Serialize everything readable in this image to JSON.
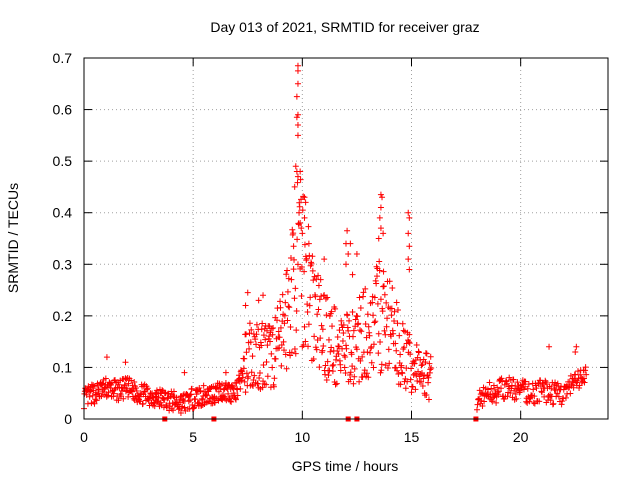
{
  "chart_data": {
    "type": "scatter",
    "title": "Day 013 of 2021, SRMTID for receiver graz",
    "xlabel": "GPS time / hours",
    "ylabel": "SRMTID / TECUs",
    "xlim": [
      0,
      24
    ],
    "ylim": [
      0,
      0.7
    ],
    "x_ticks": [
      0,
      5,
      10,
      15,
      20
    ],
    "y_ticks": [
      0,
      0.1,
      0.2,
      0.3,
      0.4,
      0.5,
      0.6,
      0.7
    ],
    "x_tick_labels": [
      "0",
      "5",
      "10",
      "15",
      "20"
    ],
    "y_tick_labels": [
      "0",
      "0.1",
      "0.2",
      "0.3",
      "0.4",
      "0.5",
      "0.6",
      "0.7"
    ],
    "grid": true,
    "marker": "+",
    "series_color": "#ff0000",
    "envelope": {
      "x": [
        0.0,
        0.5,
        1.0,
        1.5,
        2.0,
        2.5,
        3.0,
        3.5,
        4.0,
        4.5,
        5.0,
        5.5,
        6.0,
        6.5,
        7.0,
        7.3,
        7.6,
        8.0,
        8.5,
        9.0,
        9.5,
        9.8,
        10.0,
        10.3,
        10.6,
        11.0,
        11.5,
        12.0,
        12.5,
        13.0,
        13.5,
        14.0,
        14.5,
        15.0,
        15.5,
        15.9
      ],
      "y": [
        0.04,
        0.05,
        0.06,
        0.055,
        0.06,
        0.05,
        0.045,
        0.04,
        0.035,
        0.03,
        0.04,
        0.045,
        0.05,
        0.055,
        0.05,
        0.1,
        0.13,
        0.13,
        0.12,
        0.15,
        0.24,
        0.3,
        0.3,
        0.26,
        0.2,
        0.17,
        0.14,
        0.13,
        0.15,
        0.17,
        0.2,
        0.18,
        0.13,
        0.1,
        0.09,
        0.08
      ]
    },
    "envelope_2": {
      "x": [
        18.0,
        18.5,
        19.0,
        19.5,
        20.0,
        20.5,
        21.0,
        21.5,
        22.0,
        22.5,
        23.0
      ],
      "y": [
        0.04,
        0.05,
        0.055,
        0.06,
        0.055,
        0.05,
        0.055,
        0.05,
        0.05,
        0.07,
        0.08
      ]
    },
    "spikes": [
      {
        "x": 9.8,
        "y": 0.685
      },
      {
        "x": 9.8,
        "y": 0.675
      },
      {
        "x": 9.8,
        "y": 0.65
      },
      {
        "x": 9.75,
        "y": 0.625
      },
      {
        "x": 9.8,
        "y": 0.59
      },
      {
        "x": 9.75,
        "y": 0.585
      },
      {
        "x": 9.8,
        "y": 0.57
      },
      {
        "x": 9.8,
        "y": 0.55
      },
      {
        "x": 9.7,
        "y": 0.49
      },
      {
        "x": 9.75,
        "y": 0.48
      },
      {
        "x": 9.8,
        "y": 0.47
      },
      {
        "x": 9.65,
        "y": 0.45
      },
      {
        "x": 10.1,
        "y": 0.43
      },
      {
        "x": 10.15,
        "y": 0.42
      },
      {
        "x": 10.1,
        "y": 0.39
      },
      {
        "x": 9.85,
        "y": 0.4
      },
      {
        "x": 9.9,
        "y": 0.38
      },
      {
        "x": 9.95,
        "y": 0.37
      },
      {
        "x": 12.05,
        "y": 0.365
      },
      {
        "x": 12.0,
        "y": 0.34
      },
      {
        "x": 12.2,
        "y": 0.34
      },
      {
        "x": 12.1,
        "y": 0.32
      },
      {
        "x": 12.0,
        "y": 0.3
      },
      {
        "x": 12.3,
        "y": 0.28
      },
      {
        "x": 13.6,
        "y": 0.435
      },
      {
        "x": 13.65,
        "y": 0.43
      },
      {
        "x": 13.6,
        "y": 0.41
      },
      {
        "x": 13.55,
        "y": 0.39
      },
      {
        "x": 13.6,
        "y": 0.37
      },
      {
        "x": 13.7,
        "y": 0.36
      },
      {
        "x": 13.5,
        "y": 0.35
      },
      {
        "x": 14.85,
        "y": 0.4
      },
      {
        "x": 14.9,
        "y": 0.39
      },
      {
        "x": 14.85,
        "y": 0.36
      },
      {
        "x": 14.9,
        "y": 0.335
      },
      {
        "x": 14.85,
        "y": 0.31
      },
      {
        "x": 14.9,
        "y": 0.29
      },
      {
        "x": 12.5,
        "y": 0.32
      },
      {
        "x": 11.0,
        "y": 0.31
      },
      {
        "x": 8.0,
        "y": 0.23
      },
      {
        "x": 8.2,
        "y": 0.24
      },
      {
        "x": 7.4,
        "y": 0.22
      },
      {
        "x": 7.5,
        "y": 0.245
      },
      {
        "x": 9.9,
        "y": 0.48
      },
      {
        "x": 10.0,
        "y": 0.36
      },
      {
        "x": 10.3,
        "y": 0.34
      },
      {
        "x": 9.6,
        "y": 0.335
      },
      {
        "x": 21.3,
        "y": 0.14
      },
      {
        "x": 22.55,
        "y": 0.14
      },
      {
        "x": 22.5,
        "y": 0.13
      },
      {
        "x": 1.05,
        "y": 0.12
      },
      {
        "x": 1.9,
        "y": 0.11
      },
      {
        "x": 4.6,
        "y": 0.09
      },
      {
        "x": 6.5,
        "y": 0.09
      }
    ],
    "ground_markers_x": [
      3.7,
      5.95,
      12.1,
      12.5,
      17.95
    ]
  }
}
